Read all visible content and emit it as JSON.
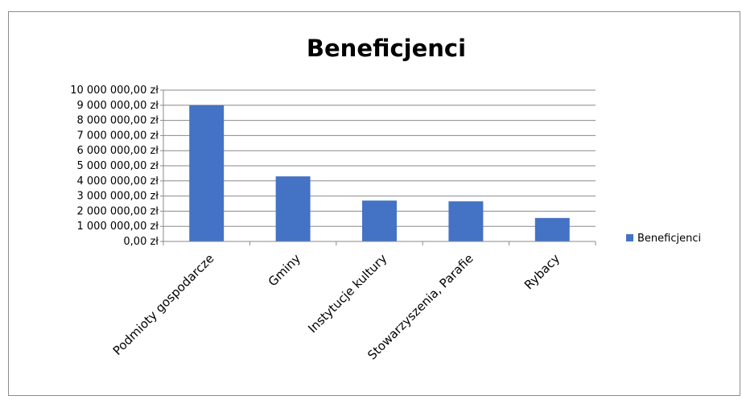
{
  "chart_data": {
    "type": "bar",
    "title": "Beneficjenci",
    "categories": [
      "Podmioty gospodarcze",
      "Gminy",
      "Instytucje kultury",
      "Stowarzyszenia, Parafie",
      "Rybacy"
    ],
    "series": [
      {
        "name": "Beneficjenci",
        "values": [
          9000000,
          4300000,
          2700000,
          2650000,
          1550000
        ],
        "color": "#4472c4"
      }
    ],
    "ylim": [
      0,
      10000000
    ],
    "ytick_step": 1000000,
    "ytick_labels": [
      "0,00 zł",
      "1 000 000,00 zł",
      "2 000 000,00 zł",
      "3 000 000,00 zł",
      "4 000 000,00 zł",
      "5 000 000,00 zł",
      "6 000 000,00 zł",
      "7 000 000,00 zł",
      "8 000 000,00 zł",
      "9 000 000,00 zł",
      "10 000 000,00 zł"
    ],
    "grid": true,
    "legend_position": "right"
  }
}
